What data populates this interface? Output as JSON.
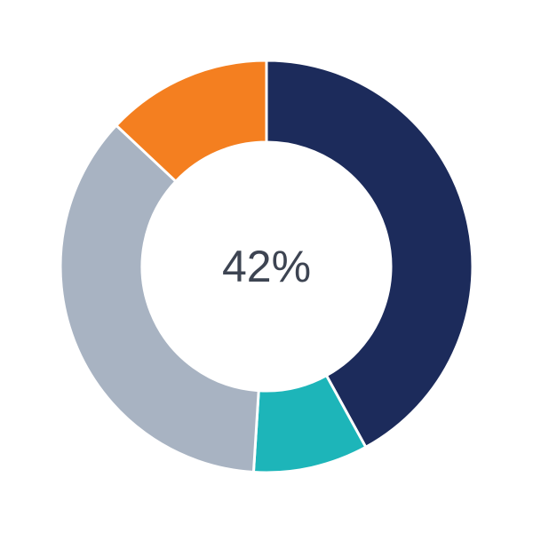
{
  "chart_data": {
    "type": "pie",
    "variant": "donut",
    "center_label": "42%",
    "slices": [
      {
        "value": 42,
        "color": "#1c2b5b"
      },
      {
        "value": 9,
        "color": "#1db5b9"
      },
      {
        "value": 36,
        "color": "#a8b3c2"
      },
      {
        "value": 13,
        "color": "#f47f20"
      }
    ],
    "start": "top",
    "direction": "clockwise",
    "legend": "none"
  }
}
